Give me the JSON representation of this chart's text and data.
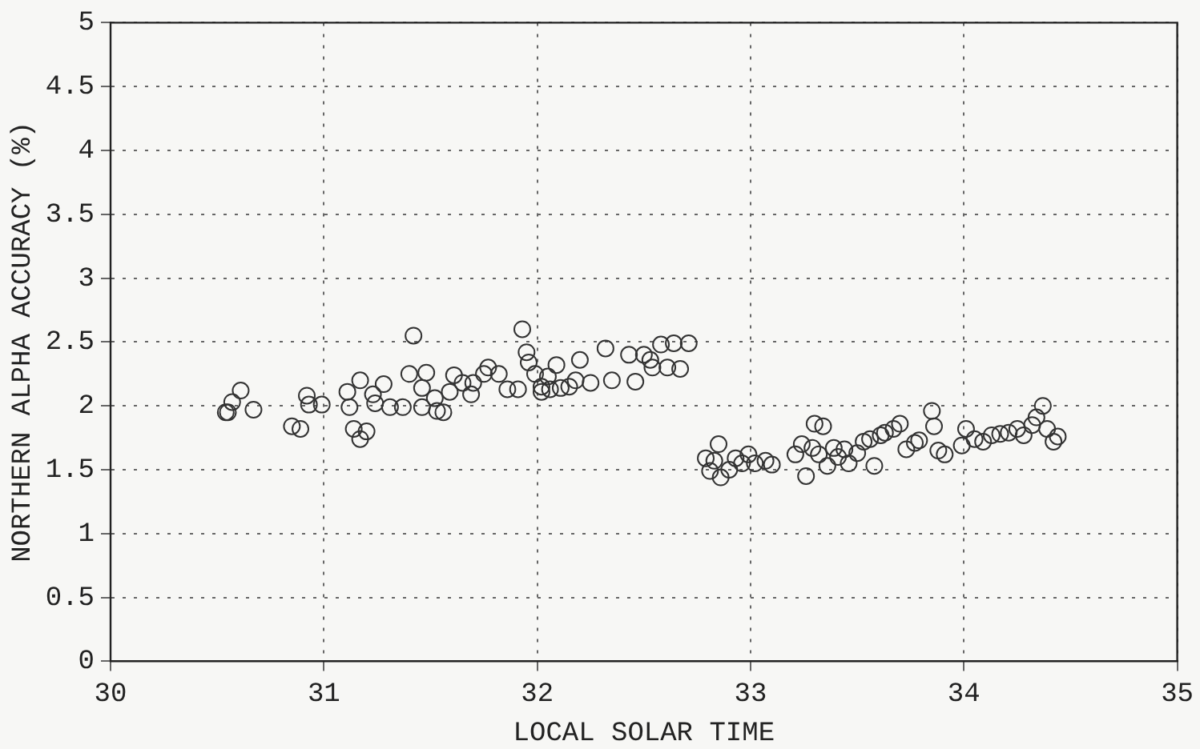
{
  "chart_data": {
    "type": "scatter",
    "xlabel": "LOCAL SOLAR TIME",
    "ylabel": "NORTHERN ALPHA ACCURACY (%)",
    "x": [
      30.54,
      30.55,
      30.57,
      30.61,
      30.67,
      30.85,
      30.89,
      30.92,
      30.93,
      30.99,
      31.11,
      31.12,
      31.14,
      31.17,
      31.2,
      31.17,
      31.24,
      31.28,
      31.23,
      31.31,
      31.4,
      31.42,
      31.48,
      31.46,
      31.37,
      31.46,
      31.52,
      31.53,
      31.56,
      31.59,
      31.61,
      31.65,
      31.69,
      31.7,
      31.75,
      31.77,
      31.82,
      31.86,
      31.91,
      31.93,
      31.95,
      31.96,
      31.99,
      32.02,
      32.02,
      32.05,
      32.06,
      32.09,
      32.11,
      32.15,
      32.18,
      32.2,
      32.25,
      32.32,
      32.35,
      32.43,
      32.46,
      32.5,
      32.53,
      32.54,
      32.58,
      32.61,
      32.64,
      32.67,
      32.71,
      32.79,
      32.81,
      32.83,
      32.85,
      32.86,
      32.9,
      32.93,
      32.96,
      32.99,
      33.02,
      33.07,
      33.1,
      33.21,
      33.24,
      33.26,
      33.29,
      33.3,
      33.34,
      33.32,
      33.36,
      33.39,
      33.41,
      33.44,
      33.46,
      33.5,
      33.53,
      33.56,
      33.58,
      33.61,
      33.63,
      33.67,
      33.7,
      33.73,
      33.77,
      33.79,
      33.85,
      33.86,
      33.88,
      33.91,
      33.99,
      34.01,
      34.05,
      34.09,
      34.13,
      34.17,
      34.21,
      34.25,
      34.28,
      34.32,
      34.34,
      34.37,
      34.39,
      34.42,
      34.44
    ],
    "values": [
      1.95,
      1.95,
      2.03,
      2.12,
      1.97,
      1.84,
      1.82,
      2.08,
      2.01,
      2.01,
      2.11,
      1.99,
      1.82,
      1.74,
      1.8,
      2.2,
      2.02,
      2.17,
      2.09,
      1.99,
      2.25,
      2.55,
      2.26,
      2.14,
      1.99,
      1.99,
      2.06,
      1.96,
      1.95,
      2.11,
      2.24,
      2.18,
      2.09,
      2.18,
      2.25,
      2.3,
      2.25,
      2.13,
      2.13,
      2.6,
      2.42,
      2.34,
      2.25,
      2.15,
      2.11,
      2.23,
      2.13,
      2.32,
      2.14,
      2.15,
      2.2,
      2.36,
      2.18,
      2.45,
      2.2,
      2.4,
      2.19,
      2.4,
      2.36,
      2.3,
      2.48,
      2.3,
      2.49,
      2.29,
      2.49,
      1.59,
      1.49,
      1.57,
      1.7,
      1.44,
      1.5,
      1.59,
      1.55,
      1.62,
      1.55,
      1.57,
      1.54,
      1.62,
      1.7,
      1.45,
      1.67,
      1.86,
      1.84,
      1.62,
      1.53,
      1.67,
      1.6,
      1.66,
      1.55,
      1.63,
      1.72,
      1.74,
      1.53,
      1.77,
      1.79,
      1.82,
      1.86,
      1.66,
      1.71,
      1.73,
      1.96,
      1.84,
      1.65,
      1.62,
      1.69,
      1.82,
      1.74,
      1.72,
      1.77,
      1.78,
      1.79,
      1.82,
      1.77,
      1.85,
      1.91,
      2.0,
      1.82,
      1.72,
      1.76
    ],
    "color": "#333333",
    "marker": "circle",
    "xlim": [
      30,
      35
    ],
    "xticks": [
      30,
      31,
      32,
      33,
      34,
      35
    ],
    "ylim": [
      0,
      5
    ],
    "yticks": [
      0,
      0.5,
      1,
      1.5,
      2,
      2.5,
      3,
      3.5,
      4,
      4.5,
      5
    ],
    "grid": true,
    "legend": false
  }
}
